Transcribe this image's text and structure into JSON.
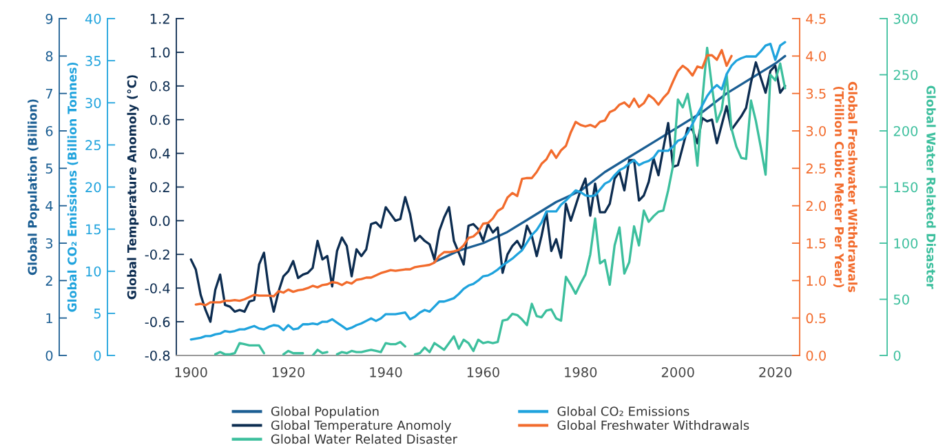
{
  "chart_data": [
    {
      "type": "line",
      "tick_labels": "y",
      "xlim": [
        1897,
        2025
      ],
      "ylabel": "Global Population (Billion)",
      "ylim": [
        0,
        9
      ],
      "yticks": [
        0,
        1,
        2,
        3,
        4,
        5,
        6,
        7,
        8,
        9
      ],
      "grid": false,
      "legend": "bottom",
      "marker": "none",
      "line_style": "solid",
      "series": [
        {
          "name": "Global Population",
          "color": "#1b5e93",
          "x": [
            1950,
            1955,
            1960,
            1965,
            1970,
            1975,
            1980,
            1985,
            1990,
            1995,
            2000,
            2005,
            2010,
            2015,
            2020,
            2022
          ],
          "values": [
            2.5,
            2.8,
            3.0,
            3.3,
            3.7,
            4.1,
            4.4,
            4.9,
            5.3,
            5.7,
            6.1,
            6.5,
            7.0,
            7.4,
            7.8,
            8.0
          ]
        }
      ]
    },
    {
      "type": "line",
      "x": [
        1900,
        1901,
        1902,
        1903,
        1904,
        1905,
        1906,
        1907,
        1908,
        1909,
        1910,
        1911,
        1912,
        1913,
        1914,
        1915,
        1916,
        1917,
        1918,
        1919,
        1920,
        1921,
        1922,
        1923,
        1924,
        1925,
        1926,
        1927,
        1928,
        1929,
        1930,
        1931,
        1932,
        1933,
        1934,
        1935,
        1936,
        1937,
        1938,
        1939,
        1940,
        1941,
        1942,
        1943,
        1944,
        1945,
        1946,
        1947,
        1948,
        1949,
        1950,
        1951,
        1952,
        1953,
        1954,
        1955,
        1956,
        1957,
        1958,
        1959,
        1960,
        1961,
        1962,
        1963,
        1964,
        1965,
        1966,
        1967,
        1968,
        1969,
        1970,
        1971,
        1972,
        1973,
        1974,
        1975,
        1976,
        1977,
        1978,
        1979,
        1980,
        1981,
        1982,
        1983,
        1984,
        1985,
        1986,
        1987,
        1988,
        1989,
        1990,
        1991,
        1992,
        1993,
        1994,
        1995,
        1996,
        1997,
        1998,
        1999,
        2000,
        2001,
        2002,
        2003,
        2004,
        2005,
        2006,
        2007,
        2008,
        2009,
        2010,
        2011,
        2012,
        2013,
        2014,
        2015,
        2016,
        2017,
        2018,
        2019,
        2020,
        2021,
        2022
      ],
      "xlim": [
        1897,
        2025
      ],
      "xticks": [
        1900,
        1920,
        1940,
        1960,
        1980,
        2000,
        2020
      ],
      "ylabel": "Global Temperature Anomoly (°C)",
      "ylim": [
        -0.8,
        1.2
      ],
      "yticks": [
        -0.8,
        -0.6,
        -0.4,
        -0.2,
        {
          "value": 0,
          "label": "0.0"
        },
        0.2,
        0.4,
        0.6,
        0.8,
        {
          "value": 1,
          "label": "1.0"
        },
        1.2
      ],
      "y2label": "Global Water Related Disaster",
      "y2lim": [
        0,
        300
      ],
      "y2ticks": [
        0,
        50,
        100,
        150,
        200,
        250,
        300
      ],
      "grid": false,
      "legend": "bottom",
      "marker": "none",
      "line_style": "solid",
      "series": [
        {
          "name": "Global Temperature Anomoly",
          "color": "#0c2c50",
          "values": [
            -0.23,
            -0.29,
            -0.44,
            -0.53,
            -0.6,
            -0.41,
            -0.32,
            -0.5,
            -0.51,
            -0.54,
            -0.53,
            -0.54,
            -0.48,
            -0.47,
            -0.26,
            -0.19,
            -0.41,
            -0.54,
            -0.42,
            -0.33,
            -0.3,
            -0.24,
            -0.34,
            -0.32,
            -0.31,
            -0.28,
            -0.12,
            -0.23,
            -0.21,
            -0.39,
            -0.18,
            -0.1,
            -0.15,
            -0.33,
            -0.17,
            -0.21,
            -0.17,
            -0.02,
            -0.01,
            -0.04,
            0.08,
            0.04,
            0.0,
            0.01,
            0.14,
            0.04,
            -0.12,
            -0.09,
            -0.12,
            -0.14,
            -0.23,
            -0.06,
            0.02,
            0.08,
            -0.12,
            -0.19,
            -0.26,
            -0.03,
            -0.02,
            -0.05,
            -0.12,
            -0.02,
            -0.07,
            -0.04,
            -0.31,
            -0.2,
            -0.15,
            -0.12,
            -0.17,
            -0.03,
            -0.09,
            -0.21,
            -0.09,
            0.05,
            -0.18,
            -0.11,
            -0.22,
            0.1,
            0.0,
            0.09,
            0.18,
            0.25,
            0.03,
            0.22,
            0.05,
            0.05,
            0.1,
            0.25,
            0.29,
            0.18,
            0.36,
            0.36,
            0.12,
            0.15,
            0.23,
            0.37,
            0.27,
            0.43,
            0.58,
            0.32,
            0.33,
            0.44,
            0.55,
            0.54,
            0.46,
            0.61,
            0.59,
            0.6,
            0.46,
            0.57,
            0.68,
            0.54,
            0.58,
            0.62,
            0.67,
            0.82,
            0.94,
            0.85,
            0.76,
            0.89,
            0.92,
            0.76,
            0.8
          ]
        },
        {
          "name": "Global Water Related Disaster",
          "color": "#3cbf9d",
          "axis": "y2",
          "x": [
            1905,
            1906,
            1907,
            1908,
            1909,
            1910,
            1911,
            1912,
            1913,
            1914,
            1915,
            1916,
            1917,
            1918,
            1919,
            1920,
            1921,
            1922,
            1923,
            1924,
            1925,
            1926,
            1927,
            1928,
            1929,
            1930,
            1931,
            1932,
            1933,
            1934,
            1935,
            1936,
            1937,
            1938,
            1939,
            1940,
            1941,
            1942,
            1943,
            1944,
            1945,
            1946,
            1947,
            1948,
            1949,
            1950,
            1951,
            1952,
            1953,
            1954,
            1955,
            1956,
            1957,
            1958,
            1959,
            1960,
            1961,
            1962,
            1963,
            1964,
            1965,
            1966,
            1967,
            1968,
            1969,
            1970,
            1971,
            1972,
            1973,
            1974,
            1975,
            1976,
            1977,
            1978,
            1979,
            1980,
            1981,
            1982,
            1983,
            1984,
            1985,
            1986,
            1987,
            1988,
            1989,
            1990,
            1991,
            1992,
            1993,
            1994,
            1995,
            1996,
            1997,
            1998,
            1999,
            2000,
            2001,
            2002,
            2003,
            2004,
            2005,
            2006,
            2007,
            2008,
            2009,
            2010,
            2011,
            2012,
            2013,
            2014,
            2015,
            2016,
            2017,
            2018,
            2019,
            2020,
            2021,
            2022
          ],
          "values": [
            1,
            3,
            1,
            1,
            2,
            11,
            10,
            9,
            9,
            9,
            2,
            null,
            null,
            null,
            1,
            4,
            2,
            2,
            2,
            null,
            0,
            5,
            2,
            3,
            null,
            1,
            3,
            2,
            4,
            3,
            3,
            4,
            5,
            4,
            3,
            11,
            10,
            10,
            12,
            8,
            null,
            1,
            2,
            7,
            3,
            11,
            8,
            5,
            11,
            17,
            6,
            14,
            11,
            4,
            14,
            11,
            12,
            11,
            12,
            31,
            32,
            37,
            36,
            32,
            27,
            46,
            35,
            34,
            40,
            41,
            33,
            31,
            70,
            63,
            55,
            64,
            72,
            90,
            122,
            82,
            85,
            63,
            98,
            114,
            73,
            83,
            115,
            98,
            129,
            119,
            124,
            128,
            129,
            147,
            169,
            228,
            221,
            233,
            208,
            169,
            227,
            274,
            239,
            208,
            219,
            250,
            202,
            186,
            176,
            175,
            227,
            209,
            186,
            161,
            250,
            245,
            260,
            238
          ]
        }
      ]
    },
    {
      "type": "line",
      "tick_labels": "y",
      "x": [
        1900,
        1901,
        1902,
        1903,
        1904,
        1905,
        1906,
        1907,
        1908,
        1909,
        1910,
        1911,
        1912,
        1913,
        1914,
        1915,
        1916,
        1917,
        1918,
        1919,
        1920,
        1921,
        1922,
        1923,
        1924,
        1925,
        1926,
        1927,
        1928,
        1929,
        1930,
        1931,
        1932,
        1933,
        1934,
        1935,
        1936,
        1937,
        1938,
        1939,
        1940,
        1941,
        1942,
        1943,
        1944,
        1945,
        1946,
        1947,
        1948,
        1949,
        1950,
        1951,
        1952,
        1953,
        1954,
        1955,
        1956,
        1957,
        1958,
        1959,
        1960,
        1961,
        1962,
        1963,
        1964,
        1965,
        1966,
        1967,
        1968,
        1969,
        1970,
        1971,
        1972,
        1973,
        1974,
        1975,
        1976,
        1977,
        1978,
        1979,
        1980,
        1981,
        1982,
        1983,
        1984,
        1985,
        1986,
        1987,
        1988,
        1989,
        1990,
        1991,
        1992,
        1993,
        1994,
        1995,
        1996,
        1997,
        1998,
        1999,
        2000,
        2001,
        2002,
        2003,
        2004,
        2005,
        2006,
        2007,
        2008,
        2009,
        2010,
        2011,
        2012,
        2013,
        2014,
        2015,
        2016,
        2017,
        2018,
        2019,
        2020,
        2021,
        2022
      ],
      "xlim": [
        1897,
        2025
      ],
      "ylabel": "Global CO₂ Emissions (Billion Tonnes)",
      "ylim": [
        0,
        40
      ],
      "yticks": [
        0,
        5,
        10,
        15,
        20,
        25,
        30,
        35,
        40
      ],
      "y2label": "Global Freshwater Withdrawals\n(Trillion Cubic Meter Per Year)",
      "y2lim": [
        0,
        4.5
      ],
      "y2ticks": [
        {
          "value": 0,
          "label": "0.0"
        },
        0.5,
        {
          "value": 1,
          "label": "1.0"
        },
        1.5,
        {
          "value": 2,
          "label": "2.0"
        },
        2.5,
        {
          "value": 3,
          "label": "3.0"
        },
        3.5,
        {
          "value": 4,
          "label": "4.0"
        },
        4.5
      ],
      "grid": false,
      "legend": "bottom",
      "marker": "none",
      "line_style": "solid",
      "series": [
        {
          "name": "Global CO₂ Emissions",
          "color": "#1fa3dd",
          "values": [
            1.9,
            2.0,
            2.1,
            2.3,
            2.3,
            2.5,
            2.6,
            2.9,
            2.8,
            2.9,
            3.1,
            3.1,
            3.3,
            3.5,
            3.2,
            3.1,
            3.4,
            3.6,
            3.5,
            3.0,
            3.6,
            3.1,
            3.2,
            3.7,
            3.7,
            3.8,
            3.7,
            4.0,
            4.0,
            4.3,
            3.9,
            3.5,
            3.1,
            3.3,
            3.6,
            3.8,
            4.1,
            4.4,
            4.1,
            4.4,
            4.9,
            4.9,
            4.9,
            5.0,
            5.1,
            4.3,
            4.6,
            5.1,
            5.4,
            5.2,
            5.8,
            6.4,
            6.4,
            6.6,
            6.8,
            7.3,
            7.9,
            8.3,
            8.5,
            8.9,
            9.4,
            9.5,
            9.8,
            10.2,
            10.7,
            11.1,
            11.5,
            12.0,
            12.5,
            13.4,
            14.3,
            14.9,
            15.8,
            17.1,
            17.1,
            17.1,
            17.9,
            18.4,
            19.0,
            19.6,
            19.4,
            19.0,
            18.9,
            19.0,
            19.7,
            20.4,
            20.7,
            21.4,
            22.0,
            22.3,
            22.8,
            23.2,
            22.6,
            22.9,
            23.1,
            23.5,
            24.3,
            24.3,
            24.3,
            24.8,
            25.5,
            25.7,
            26.4,
            27.5,
            28.6,
            29.7,
            30.8,
            31.6,
            32.1,
            31.6,
            33.4,
            34.4,
            35.0,
            35.3,
            35.5,
            35.5,
            35.5,
            36.1,
            36.8,
            37.0,
            35.1,
            36.8,
            37.2
          ]
        },
        {
          "name": "Global Freshwater Withdrawals",
          "color": "#f26b2c",
          "axis": "y2",
          "x": [
            1901,
            1902,
            1903,
            1904,
            1905,
            1906,
            1907,
            1908,
            1909,
            1910,
            1911,
            1912,
            1913,
            1914,
            1915,
            1916,
            1917,
            1918,
            1919,
            1920,
            1921,
            1922,
            1923,
            1924,
            1925,
            1926,
            1927,
            1928,
            1929,
            1930,
            1931,
            1932,
            1933,
            1934,
            1935,
            1936,
            1937,
            1938,
            1939,
            1940,
            1941,
            1942,
            1943,
            1944,
            1945,
            1946,
            1947,
            1948,
            1949,
            1950,
            1951,
            1952,
            1953,
            1954,
            1955,
            1956,
            1957,
            1958,
            1959,
            1960,
            1961,
            1962,
            1963,
            1964,
            1965,
            1966,
            1967,
            1968,
            1969,
            1970,
            1971,
            1972,
            1973,
            1974,
            1975,
            1976,
            1977,
            1978,
            1979,
            1980,
            1981,
            1982,
            1983,
            1984,
            1985,
            1986,
            1987,
            1988,
            1989,
            1990,
            1991,
            1992,
            1993,
            1994,
            1995,
            1996,
            1997,
            1998,
            1999,
            2000,
            2001,
            2002,
            2003,
            2004,
            2005,
            2006,
            2007,
            2008,
            2009,
            2010,
            2011
          ],
          "values": [
            0.68,
            0.69,
            0.67,
            0.71,
            0.71,
            0.71,
            0.73,
            0.73,
            0.74,
            0.73,
            0.75,
            0.78,
            0.81,
            0.8,
            0.8,
            0.8,
            0.79,
            0.86,
            0.84,
            0.88,
            0.85,
            0.87,
            0.88,
            0.9,
            0.93,
            0.91,
            0.94,
            0.95,
            0.98,
            0.97,
            0.94,
            0.98,
            0.96,
            1.01,
            1.02,
            1.04,
            1.04,
            1.07,
            1.1,
            1.12,
            1.14,
            1.13,
            1.14,
            1.15,
            1.15,
            1.18,
            1.19,
            1.2,
            1.21,
            1.24,
            1.33,
            1.38,
            1.38,
            1.39,
            1.41,
            1.47,
            1.57,
            1.59,
            1.65,
            1.76,
            1.77,
            1.83,
            1.93,
            1.97,
            2.11,
            2.17,
            2.13,
            2.36,
            2.37,
            2.37,
            2.45,
            2.56,
            2.62,
            2.74,
            2.64,
            2.74,
            2.8,
            2.98,
            3.12,
            3.08,
            3.06,
            3.08,
            3.05,
            3.12,
            3.14,
            3.25,
            3.28,
            3.35,
            3.38,
            3.32,
            3.43,
            3.32,
            3.37,
            3.48,
            3.43,
            3.35,
            3.44,
            3.51,
            3.66,
            3.8,
            3.87,
            3.82,
            3.74,
            3.86,
            3.84,
            4.01,
            4.01,
            3.95,
            4.08,
            3.87,
            4.0
          ]
        }
      ]
    }
  ]
}
